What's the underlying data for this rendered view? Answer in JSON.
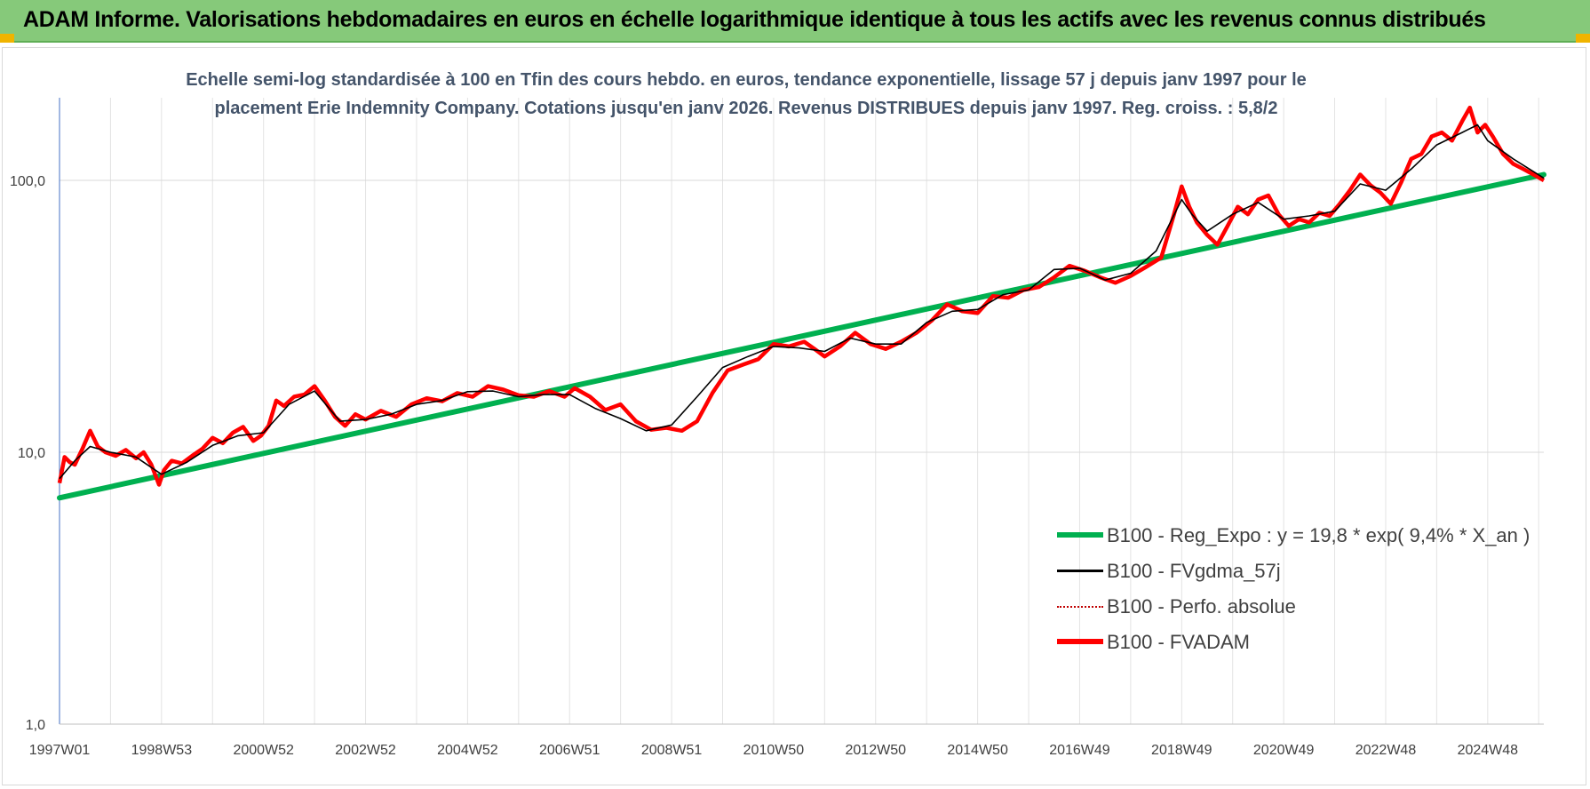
{
  "banner": {
    "title": "ADAM Informe. Valorisations hebdomadaires en euros en échelle logarithmique identique à tous les actifs avec les revenus connus distribués",
    "background": "#86c97a"
  },
  "chart_data": {
    "type": "line",
    "title": "",
    "subtitle_line1": "Echelle semi-log standardisée à 100 en Tfin des cours hebdo. en euros, tendance exponentielle, lissage 57 j depuis janv 1997 pour le",
    "subtitle_line2": "placement Erie Indemnity Company. Cotations jusqu'en janv 2026. Revenus DISTRIBUES depuis janv 1997. Reg. croiss. : 5,8/2",
    "y_scale": "log",
    "ylim": [
      1,
      200
    ],
    "y_ticks": [
      1,
      10,
      100
    ],
    "y_tick_labels": [
      "1,0",
      "10,0",
      "100,0"
    ],
    "x_tick_labels": [
      "1997W01",
      "1998W53",
      "2000W52",
      "2002W52",
      "2004W52",
      "2006W51",
      "2008W51",
      "2010W50",
      "2012W50",
      "2014W50",
      "2016W49",
      "2018W49",
      "2020W49",
      "2022W48",
      "2024W48"
    ],
    "x_tick_years": [
      1997.0,
      1999.0,
      2001.0,
      2003.0,
      2005.0,
      2007.0,
      2009.0,
      2011.0,
      2013.0,
      2015.0,
      2017.0,
      2019.0,
      2021.0,
      2023.0,
      2025.0
    ],
    "xlim": [
      1997.0,
      2026.1
    ],
    "grid": "vertical and horizontal",
    "legend_placement": "bottom-right",
    "series": [
      {
        "name": "B100 - Reg_Expo : y = 19,8 * exp( 9,4% *  X_an )",
        "color": "#00b050",
        "style": "thick",
        "x": [
          1997.0,
          2026.1
        ],
        "y": [
          6.8,
          105
        ]
      },
      {
        "name": "B100 - FVgdma_57j",
        "color": "#000000",
        "style": "thin",
        "x": [
          1997.0,
          1997.3,
          1997.6,
          1998.0,
          1998.5,
          1999.0,
          1999.5,
          2000.0,
          2000.5,
          2001.0,
          2001.5,
          2002.0,
          2002.5,
          2003.0,
          2003.5,
          2004.0,
          2004.5,
          2005.0,
          2005.5,
          2006.0,
          2006.5,
          2007.0,
          2007.5,
          2008.0,
          2008.5,
          2009.0,
          2009.5,
          2010.0,
          2010.5,
          2011.0,
          2011.5,
          2012.0,
          2012.5,
          2013.0,
          2013.5,
          2014.0,
          2014.5,
          2015.0,
          2015.5,
          2016.0,
          2016.5,
          2017.0,
          2017.5,
          2018.0,
          2018.5,
          2019.0,
          2019.2,
          2019.5,
          2020.0,
          2020.5,
          2021.0,
          2021.5,
          2022.0,
          2022.5,
          2023.0,
          2023.5,
          2024.0,
          2024.5,
          2024.8,
          2025.0,
          2025.5,
          2026.1
        ],
        "y": [
          8.0,
          9.3,
          10.5,
          10.0,
          9.6,
          8.3,
          9.2,
          10.6,
          11.5,
          11.8,
          15.0,
          16.8,
          13.0,
          13.2,
          13.8,
          15.0,
          15.5,
          16.7,
          16.8,
          16.0,
          16.3,
          16.3,
          14.5,
          13.3,
          12.0,
          12.6,
          16.0,
          20.5,
          22.5,
          24.5,
          24.2,
          23.5,
          26.3,
          25.0,
          25.0,
          30.0,
          33.0,
          33.5,
          38.0,
          39.5,
          47.0,
          47.5,
          43.0,
          45.5,
          55.0,
          85.0,
          75.0,
          65.0,
          75.0,
          83.0,
          72.0,
          74.0,
          77.0,
          97.0,
          92.0,
          110.0,
          135.0,
          150.0,
          160.0,
          140.0,
          120.0,
          102.0
        ]
      },
      {
        "name": "B100 - Perfo. absolue",
        "color": "#c00000",
        "style": "dotted"
      },
      {
        "name": "B100 - FVADAM",
        "color": "#ff0000",
        "style": "thick",
        "x": [
          1997.0,
          1997.1,
          1997.2,
          1997.3,
          1997.45,
          1997.6,
          1997.75,
          1997.9,
          1998.1,
          1998.3,
          1998.5,
          1998.65,
          1998.8,
          1998.95,
          1999.05,
          1999.2,
          1999.4,
          1999.6,
          1999.8,
          2000.0,
          2000.2,
          2000.4,
          2000.6,
          2000.8,
          2000.95,
          2001.1,
          2001.25,
          2001.4,
          2001.6,
          2001.8,
          2002.0,
          2002.2,
          2002.4,
          2002.6,
          2002.8,
          2003.0,
          2003.3,
          2003.6,
          2003.9,
          2004.2,
          2004.5,
          2004.8,
          2005.1,
          2005.4,
          2005.7,
          2006.0,
          2006.3,
          2006.6,
          2006.9,
          2007.1,
          2007.4,
          2007.7,
          2008.0,
          2008.3,
          2008.6,
          2008.9,
          2009.2,
          2009.5,
          2009.8,
          2010.1,
          2010.4,
          2010.7,
          2011.0,
          2011.3,
          2011.6,
          2011.8,
          2012.0,
          2012.3,
          2012.6,
          2012.9,
          2013.2,
          2013.5,
          2013.8,
          2014.1,
          2014.4,
          2014.7,
          2015.0,
          2015.3,
          2015.6,
          2015.9,
          2016.2,
          2016.5,
          2016.8,
          2017.1,
          2017.4,
          2017.7,
          2018.0,
          2018.3,
          2018.6,
          2018.85,
          2019.0,
          2019.15,
          2019.3,
          2019.5,
          2019.7,
          2019.9,
          2020.1,
          2020.3,
          2020.5,
          2020.7,
          2020.9,
          2021.1,
          2021.3,
          2021.5,
          2021.7,
          2021.9,
          2022.1,
          2022.3,
          2022.5,
          2022.7,
          2022.9,
          2023.1,
          2023.3,
          2023.5,
          2023.7,
          2023.9,
          2024.1,
          2024.3,
          2024.5,
          2024.65,
          2024.8,
          2024.95,
          2025.1,
          2025.3,
          2025.5,
          2025.7,
          2025.9,
          2026.1
        ],
        "y": [
          7.7,
          9.6,
          9.2,
          9.0,
          10.3,
          12.0,
          10.5,
          10.0,
          9.7,
          10.2,
          9.5,
          10.0,
          9.0,
          7.6,
          8.6,
          9.3,
          9.1,
          9.7,
          10.3,
          11.3,
          10.8,
          11.8,
          12.4,
          11.0,
          11.5,
          12.5,
          15.5,
          14.8,
          16.0,
          16.3,
          17.5,
          15.5,
          13.5,
          12.5,
          13.8,
          13.2,
          14.2,
          13.5,
          15.0,
          15.8,
          15.4,
          16.5,
          16.0,
          17.5,
          17.0,
          16.2,
          16.0,
          16.8,
          16.0,
          17.2,
          16.0,
          14.3,
          15.0,
          13.0,
          12.1,
          12.3,
          12.0,
          13.0,
          16.5,
          20.0,
          21.0,
          22.0,
          25.0,
          24.5,
          25.5,
          24.0,
          22.5,
          24.5,
          27.5,
          25.0,
          24.0,
          25.5,
          27.5,
          30.5,
          35.0,
          33.0,
          32.5,
          37.5,
          37.0,
          39.5,
          40.5,
          44.0,
          48.5,
          46.5,
          44.0,
          42.0,
          44.5,
          48.0,
          52.0,
          75.0,
          95.0,
          80.0,
          70.0,
          63.0,
          58.0,
          68.0,
          80.0,
          75.0,
          85.0,
          88.0,
          75.0,
          68.0,
          72.0,
          70.0,
          76.0,
          74.0,
          82.0,
          92.0,
          105.0,
          96.0,
          90.0,
          82.0,
          98.0,
          120.0,
          125.0,
          145.0,
          150.0,
          140.0,
          165.0,
          185.0,
          150.0,
          160.0,
          145.0,
          125.0,
          115.0,
          110.0,
          105.0,
          100.0
        ]
      }
    ],
    "legend_order": [
      0,
      1,
      2,
      3
    ]
  }
}
